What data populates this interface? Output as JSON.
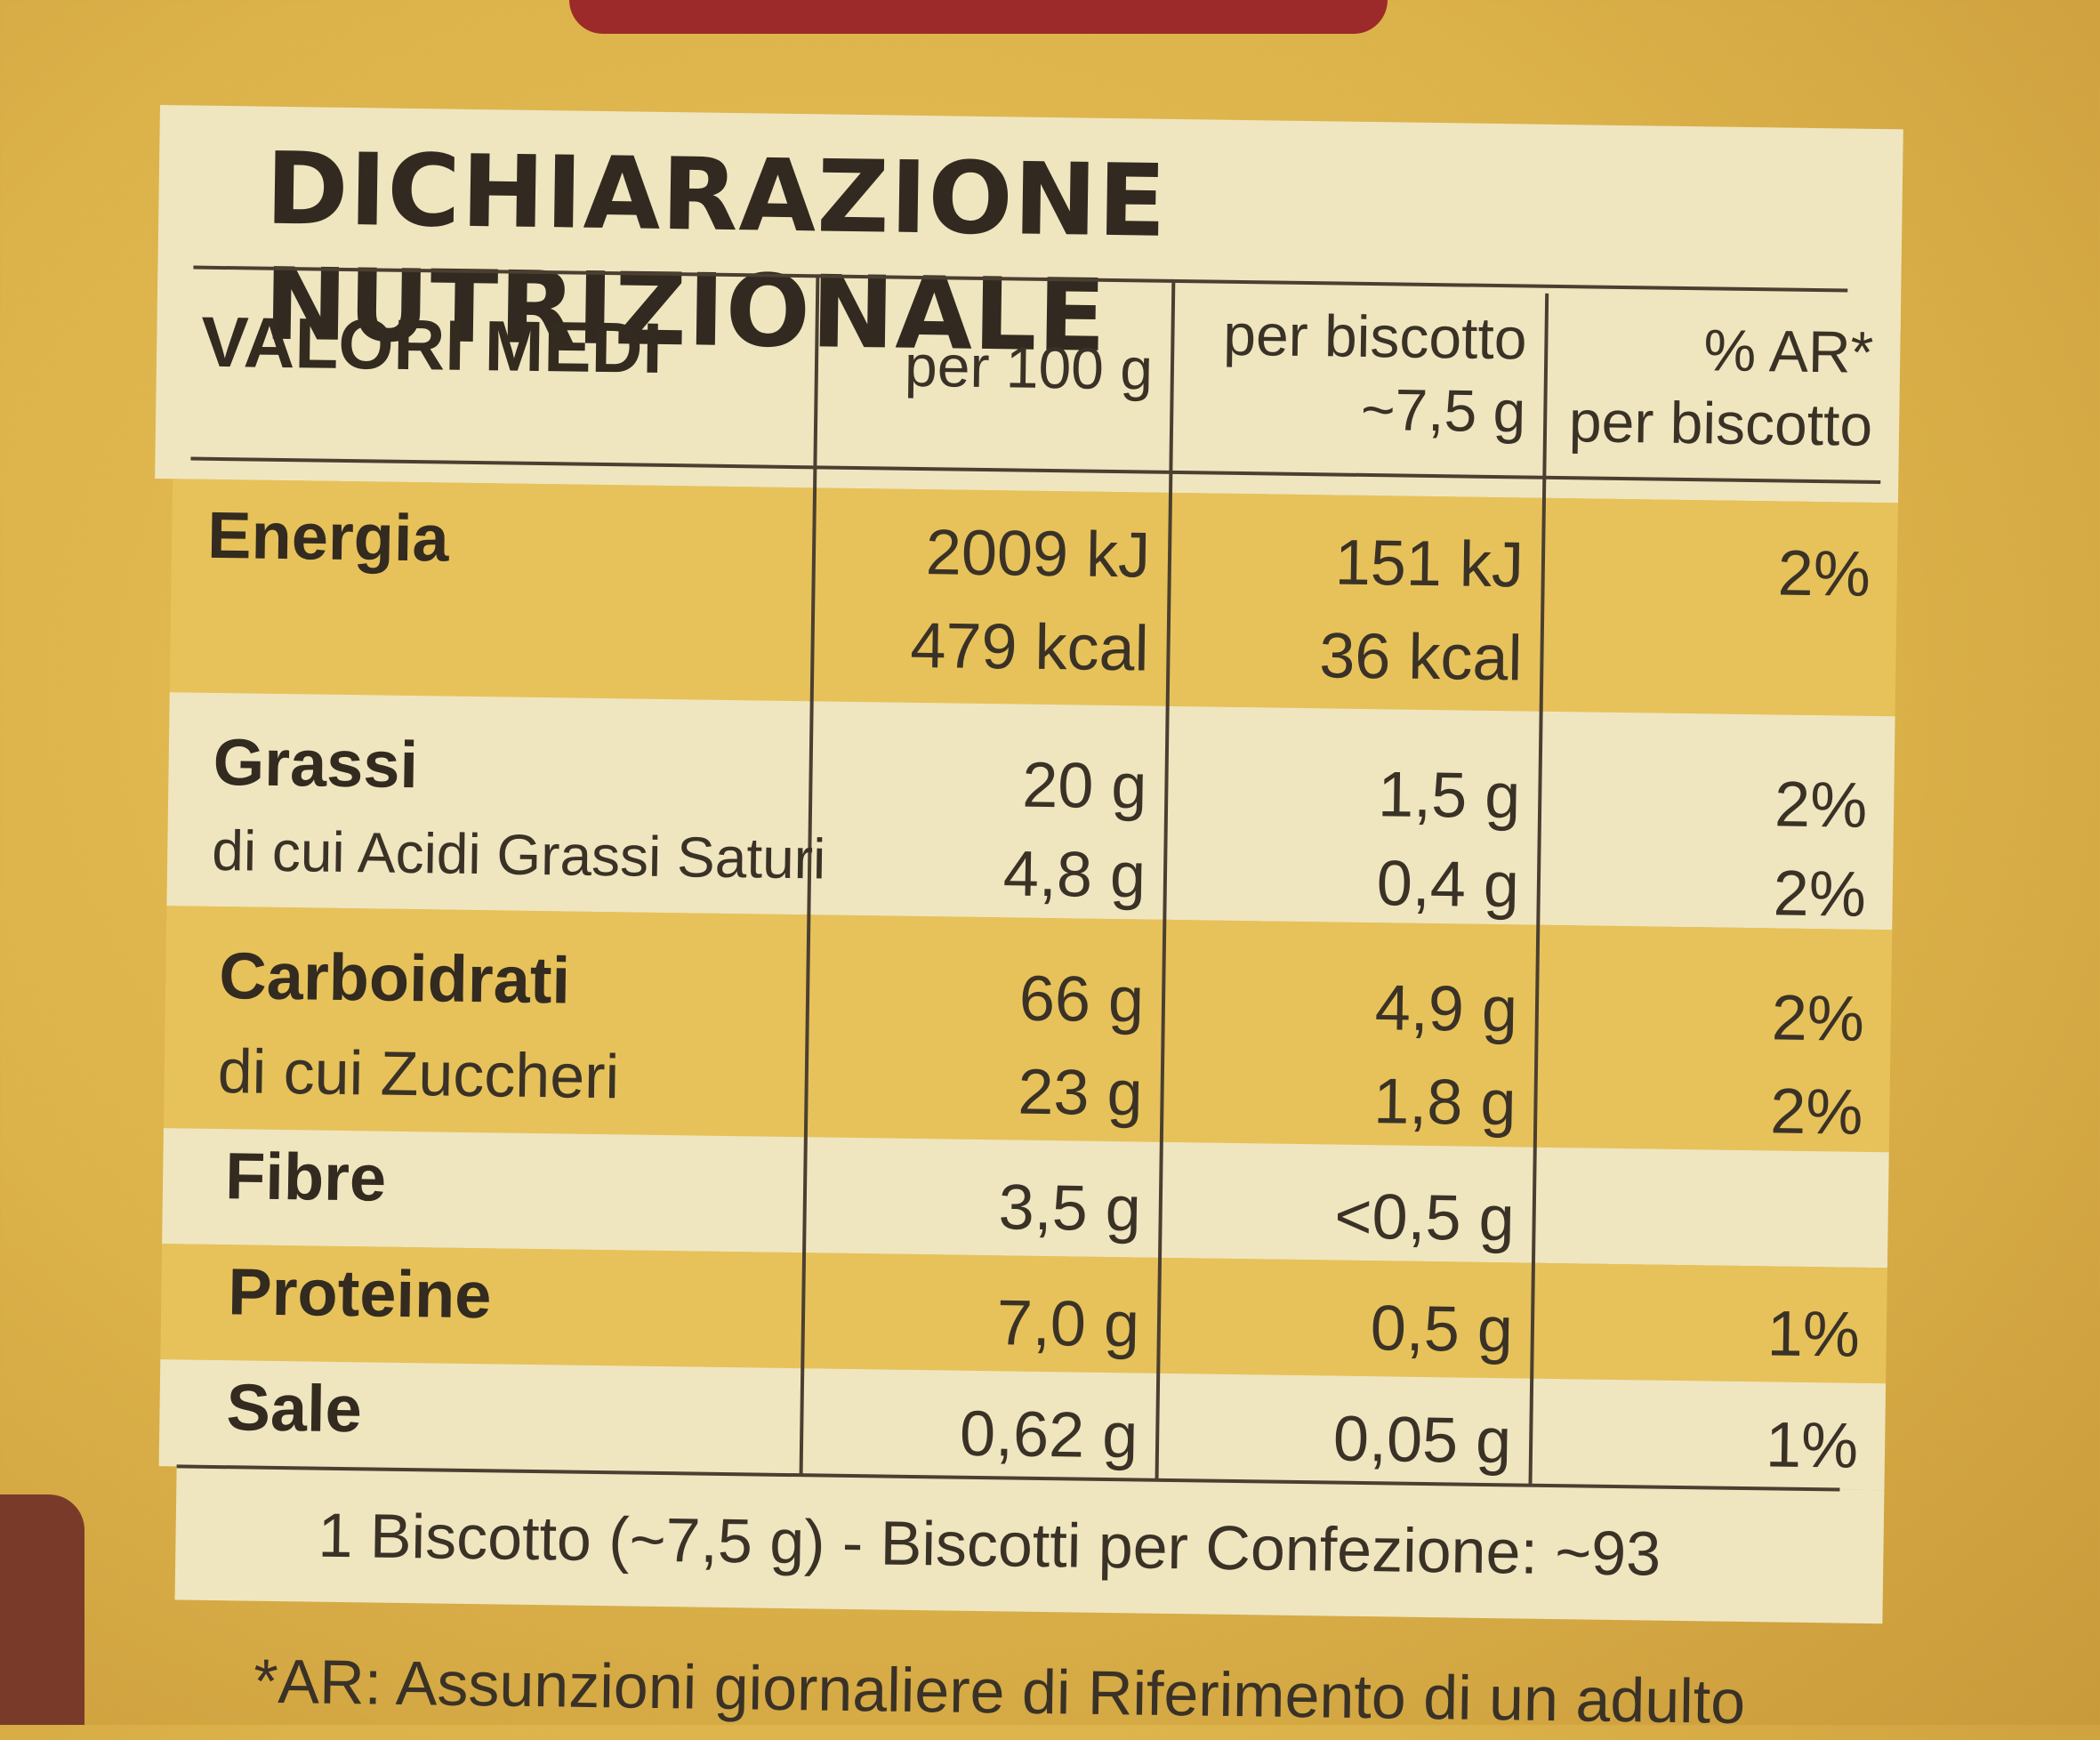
{
  "title": "DICHIARAZIONE NUTRIZIONALE",
  "headers": {
    "label": "VALORI MEDI",
    "per100": "per 100 g",
    "perPiece1": "per biscotto",
    "perPiece2": "~7,5 g",
    "ar1": "% AR*",
    "ar2": "per biscotto"
  },
  "rows": [
    {
      "label": "Energia",
      "per100": "2009 kJ",
      "perPiece": "151 kJ",
      "ar": "2%"
    },
    {
      "label": "",
      "per100": "479 kcal",
      "perPiece": "36 kcal",
      "ar": ""
    },
    {
      "label": "Grassi",
      "per100": "20 g",
      "perPiece": "1,5 g",
      "ar": "2%"
    },
    {
      "label": "di cui Acidi Grassi Saturi",
      "per100": "4,8 g",
      "perPiece": "0,4 g",
      "ar": "2%"
    },
    {
      "label": "Carboidrati",
      "per100": "66 g",
      "perPiece": "4,9 g",
      "ar": "2%"
    },
    {
      "label": "di cui Zuccheri",
      "per100": "23 g",
      "perPiece": "1,8 g",
      "ar": "2%"
    },
    {
      "label": "Fibre",
      "per100": "3,5 g",
      "perPiece": "<0,5 g",
      "ar": ""
    },
    {
      "label": "Proteine",
      "per100": "7,0 g",
      "perPiece": "0,5 g",
      "ar": "1%"
    },
    {
      "label": "Sale",
      "per100": "0,62 g",
      "perPiece": "0,05 g",
      "ar": "1%"
    }
  ],
  "footer": "1 Biscotto (~7,5 g) - Biscotti per Confezione: ~93",
  "footnote": "*AR: Assunzioni giornaliere di Riferimento di un adulto"
}
